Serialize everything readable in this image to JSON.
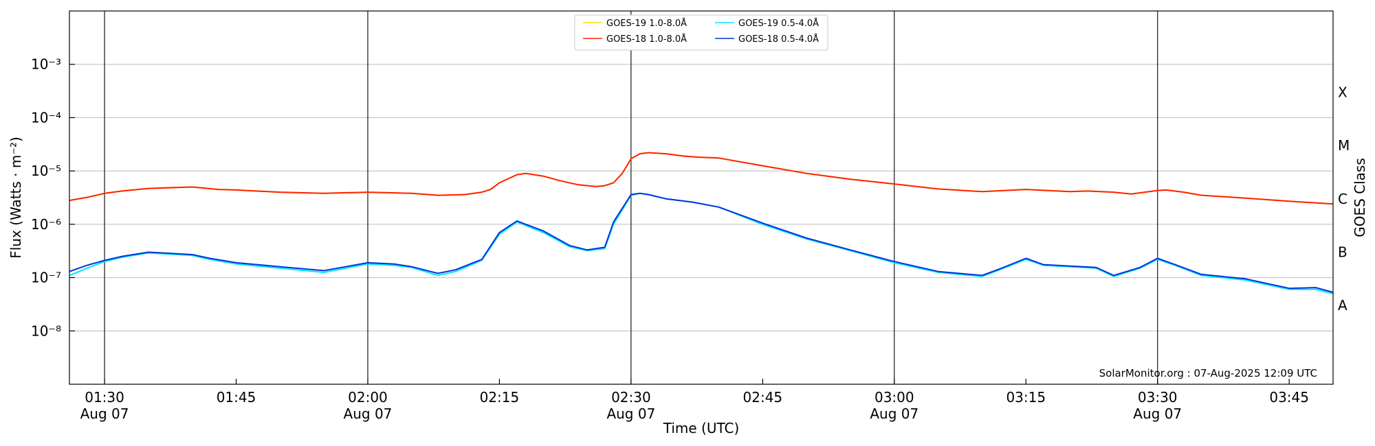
{
  "chart_data": {
    "type": "line",
    "xlabel": "Time (UTC)",
    "ylabel": "Flux (Watts · m⁻²)",
    "ylabel_right": "GOES Class",
    "x_range": [
      "01:26",
      "03:50"
    ],
    "ylim": [
      1e-09,
      0.01
    ],
    "yscale": "log",
    "grid": "horizontal",
    "legend_position": "top-center",
    "y_ticks": [
      {
        "value": 1e-08,
        "label": "10⁻⁸"
      },
      {
        "value": 1e-07,
        "label": "10⁻⁷"
      },
      {
        "value": 1e-06,
        "label": "10⁻⁶"
      },
      {
        "value": 1e-05,
        "label": "10⁻⁵"
      },
      {
        "value": 0.0001,
        "label": "10⁻⁴"
      },
      {
        "value": 0.001,
        "label": "10⁻³"
      }
    ],
    "goes_classes": [
      {
        "label": "A",
        "value": 3e-08
      },
      {
        "label": "B",
        "value": 3e-07
      },
      {
        "label": "C",
        "value": 3e-06
      },
      {
        "label": "M",
        "value": 3e-05
      },
      {
        "label": "X",
        "value": 0.0003
      }
    ],
    "x_ticks": [
      {
        "time": "01:30",
        "label": "01:30",
        "sublabel": "Aug 07",
        "major": true
      },
      {
        "time": "01:45",
        "label": "01:45",
        "sublabel": "",
        "major": false
      },
      {
        "time": "02:00",
        "label": "02:00",
        "sublabel": "Aug 07",
        "major": true
      },
      {
        "time": "02:15",
        "label": "02:15",
        "sublabel": "",
        "major": false
      },
      {
        "time": "02:30",
        "label": "02:30",
        "sublabel": "Aug 07",
        "major": true
      },
      {
        "time": "02:45",
        "label": "02:45",
        "sublabel": "",
        "major": false
      },
      {
        "time": "03:00",
        "label": "03:00",
        "sublabel": "Aug 07",
        "major": true
      },
      {
        "time": "03:15",
        "label": "03:15",
        "sublabel": "",
        "major": false
      },
      {
        "time": "03:30",
        "label": "03:30",
        "sublabel": "Aug 07",
        "major": true
      },
      {
        "time": "03:45",
        "label": "03:45",
        "sublabel": "",
        "major": false
      }
    ],
    "annotation": "SolarMonitor.org : 07-Aug-2025 12:09 UTC",
    "series": [
      {
        "name": "GOES-19 1.0-8.0Å",
        "color": "#ffd700",
        "x": [
          "01:26",
          "01:28",
          "01:30",
          "01:32",
          "01:35",
          "01:40",
          "01:43",
          "01:45",
          "01:50",
          "01:55",
          "02:00",
          "02:05",
          "02:08",
          "02:11",
          "02:13",
          "02:14",
          "02:15",
          "02:17",
          "02:18",
          "02:20",
          "02:22",
          "02:24",
          "02:26",
          "02:27",
          "02:28",
          "02:29",
          "02:30",
          "02:31",
          "02:32",
          "02:34",
          "02:36",
          "02:38",
          "02:40",
          "02:45",
          "02:50",
          "02:55",
          "03:00",
          "03:05",
          "03:10",
          "03:15",
          "03:20",
          "03:22",
          "03:25",
          "03:27",
          "03:30",
          "03:31",
          "03:33",
          "03:35",
          "03:40",
          "03:45",
          "03:50"
        ],
        "values": [
          2.8e-06,
          3.2e-06,
          3.8e-06,
          4.2e-06,
          4.7e-06,
          5e-06,
          4.5e-06,
          4.4e-06,
          4e-06,
          3.8e-06,
          4e-06,
          3.8e-06,
          3.5e-06,
          3.6e-06,
          4e-06,
          4.5e-06,
          6e-06,
          8.5e-06,
          9e-06,
          8e-06,
          6.5e-06,
          5.5e-06,
          5.1e-06,
          5.3e-06,
          6e-06,
          9e-06,
          1.7e-05,
          2.1e-05,
          2.2e-05,
          2.1e-05,
          1.9e-05,
          1.8e-05,
          1.75e-05,
          1.25e-05,
          9e-06,
          7e-06,
          5.7e-06,
          4.6e-06,
          4.1e-06,
          4.5e-06,
          4.1e-06,
          4.2e-06,
          4e-06,
          3.7e-06,
          4.3e-06,
          4.4e-06,
          4e-06,
          3.5e-06,
          3.1e-06,
          2.7e-06,
          2.4e-06
        ]
      },
      {
        "name": "GOES-18 1.0-8.0Å",
        "color": "#ff2200",
        "x": [
          "01:26",
          "01:28",
          "01:30",
          "01:32",
          "01:35",
          "01:40",
          "01:43",
          "01:45",
          "01:50",
          "01:55",
          "02:00",
          "02:05",
          "02:08",
          "02:11",
          "02:13",
          "02:14",
          "02:15",
          "02:17",
          "02:18",
          "02:20",
          "02:22",
          "02:24",
          "02:26",
          "02:27",
          "02:28",
          "02:29",
          "02:30",
          "02:31",
          "02:32",
          "02:34",
          "02:36",
          "02:38",
          "02:40",
          "02:45",
          "02:50",
          "02:55",
          "03:00",
          "03:05",
          "03:10",
          "03:15",
          "03:20",
          "03:22",
          "03:25",
          "03:27",
          "03:30",
          "03:31",
          "03:33",
          "03:35",
          "03:40",
          "03:45",
          "03:50"
        ],
        "values": [
          2.8e-06,
          3.2e-06,
          3.8e-06,
          4.2e-06,
          4.7e-06,
          5e-06,
          4.5e-06,
          4.4e-06,
          4e-06,
          3.8e-06,
          4e-06,
          3.8e-06,
          3.5e-06,
          3.6e-06,
          4e-06,
          4.5e-06,
          6e-06,
          8.5e-06,
          9e-06,
          8e-06,
          6.5e-06,
          5.5e-06,
          5.1e-06,
          5.3e-06,
          6e-06,
          9e-06,
          1.7e-05,
          2.1e-05,
          2.2e-05,
          2.1e-05,
          1.9e-05,
          1.8e-05,
          1.75e-05,
          1.25e-05,
          9e-06,
          7e-06,
          5.7e-06,
          4.6e-06,
          4.1e-06,
          4.5e-06,
          4.1e-06,
          4.2e-06,
          4e-06,
          3.7e-06,
          4.3e-06,
          4.4e-06,
          4e-06,
          3.5e-06,
          3.1e-06,
          2.7e-06,
          2.4e-06
        ]
      },
      {
        "name": "GOES-19 0.5-4.0Å",
        "color": "#00e5ff",
        "x": [
          "01:26",
          "01:28",
          "01:30",
          "01:32",
          "01:35",
          "01:40",
          "01:42",
          "01:45",
          "01:50",
          "01:55",
          "02:00",
          "02:03",
          "02:05",
          "02:08",
          "02:10",
          "02:13",
          "02:15",
          "02:17",
          "02:20",
          "02:23",
          "02:25",
          "02:27",
          "02:28",
          "02:30",
          "02:31",
          "02:32",
          "02:34",
          "02:37",
          "02:40",
          "02:45",
          "02:50",
          "02:55",
          "03:00",
          "03:05",
          "03:10",
          "03:12",
          "03:15",
          "03:17",
          "03:20",
          "03:23",
          "03:25",
          "03:28",
          "03:30",
          "03:32",
          "03:35",
          "03:40",
          "03:45",
          "03:48",
          "03:50"
        ],
        "values": [
          1.1e-07,
          1.5e-07,
          2e-07,
          2.4e-07,
          2.9e-07,
          2.6e-07,
          2.2e-07,
          1.8e-07,
          1.5e-07,
          1.25e-07,
          1.8e-07,
          1.7e-07,
          1.55e-07,
          1.1e-07,
          1.3e-07,
          2.1e-07,
          6.5e-07,
          1.1e-06,
          7e-07,
          3.8e-07,
          3.2e-07,
          3.5e-07,
          1e-06,
          3.5e-06,
          3.8e-06,
          3.6e-06,
          3e-06,
          2.6e-06,
          2.1e-06,
          1e-06,
          5.3e-07,
          3.2e-07,
          1.9e-07,
          1.25e-07,
          1.05e-07,
          1.4e-07,
          2.2e-07,
          1.7e-07,
          1.6e-07,
          1.5e-07,
          1.05e-07,
          1.5e-07,
          2.2e-07,
          1.7e-07,
          1.1e-07,
          9e-08,
          6e-08,
          6e-08,
          5e-08
        ]
      },
      {
        "name": "GOES-18 0.5-4.0Å",
        "color": "#0033dd",
        "x": [
          "01:26",
          "01:28",
          "01:30",
          "01:32",
          "01:35",
          "01:40",
          "01:42",
          "01:45",
          "01:50",
          "01:55",
          "02:00",
          "02:03",
          "02:05",
          "02:08",
          "02:10",
          "02:13",
          "02:15",
          "02:17",
          "02:20",
          "02:23",
          "02:25",
          "02:27",
          "02:28",
          "02:30",
          "02:31",
          "02:32",
          "02:34",
          "02:37",
          "02:40",
          "02:45",
          "02:50",
          "02:55",
          "03:00",
          "03:05",
          "03:10",
          "03:12",
          "03:15",
          "03:17",
          "03:20",
          "03:23",
          "03:25",
          "03:28",
          "03:30",
          "03:32",
          "03:35",
          "03:40",
          "03:45",
          "03:48",
          "03:50"
        ],
        "values": [
          1.3e-07,
          1.7e-07,
          2.1e-07,
          2.5e-07,
          3e-07,
          2.7e-07,
          2.3e-07,
          1.9e-07,
          1.6e-07,
          1.35e-07,
          1.9e-07,
          1.8e-07,
          1.6e-07,
          1.2e-07,
          1.4e-07,
          2.2e-07,
          7e-07,
          1.15e-06,
          7.5e-07,
          4e-07,
          3.3e-07,
          3.7e-07,
          1.1e-06,
          3.6e-06,
          3.8e-06,
          3.6e-06,
          3e-06,
          2.6e-06,
          2.1e-06,
          1.05e-06,
          5.5e-07,
          3.3e-07,
          2e-07,
          1.3e-07,
          1.1e-07,
          1.45e-07,
          2.3e-07,
          1.75e-07,
          1.65e-07,
          1.55e-07,
          1.1e-07,
          1.55e-07,
          2.3e-07,
          1.75e-07,
          1.15e-07,
          9.5e-08,
          6.3e-08,
          6.5e-08,
          5.3e-08
        ]
      }
    ]
  }
}
